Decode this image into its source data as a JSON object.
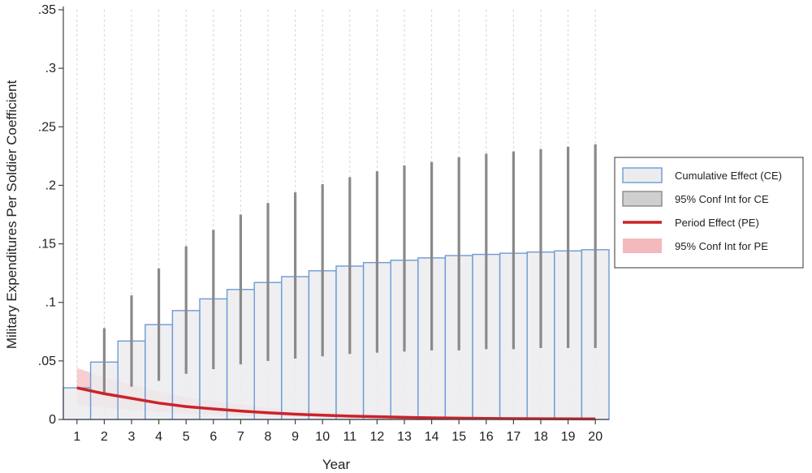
{
  "chart_data": {
    "type": "bar",
    "title": "",
    "xlabel": "Year",
    "ylabel": "Military Expenditures Per Soldier Coefficient",
    "ylim": [
      0,
      0.35
    ],
    "ytick_values": [
      0,
      0.05,
      0.1,
      0.15,
      0.2,
      0.25,
      0.3,
      0.35
    ],
    "ytick_labels": [
      "0",
      ".05",
      ".1",
      ".15",
      ".2",
      ".25",
      ".3",
      ".35"
    ],
    "categories": [
      "1",
      "2",
      "3",
      "4",
      "5",
      "6",
      "7",
      "8",
      "9",
      "10",
      "11",
      "12",
      "13",
      "14",
      "15",
      "16",
      "17",
      "18",
      "19",
      "20"
    ],
    "grid": "vertical dashed",
    "legend_position": "right",
    "series": [
      {
        "name": "Cumulative Effect (CE)",
        "kind": "bar",
        "values": [
          0.027,
          0.049,
          0.067,
          0.081,
          0.093,
          0.103,
          0.111,
          0.117,
          0.122,
          0.127,
          0.131,
          0.134,
          0.136,
          0.138,
          0.14,
          0.141,
          0.142,
          0.143,
          0.144,
          0.145
        ]
      },
      {
        "name": "95% Conf Int for CE",
        "kind": "errorbar",
        "lower": [
          null,
          0.021,
          0.028,
          0.033,
          0.039,
          0.043,
          0.047,
          0.05,
          0.052,
          0.054,
          0.056,
          0.057,
          0.058,
          0.059,
          0.059,
          0.06,
          0.06,
          0.061,
          0.061,
          0.061
        ],
        "upper": [
          null,
          0.078,
          0.106,
          0.129,
          0.148,
          0.162,
          0.175,
          0.185,
          0.194,
          0.201,
          0.207,
          0.212,
          0.217,
          0.22,
          0.224,
          0.227,
          0.229,
          0.231,
          0.233,
          0.235
        ]
      },
      {
        "name": "Period Effect (PE)",
        "kind": "line",
        "values": [
          0.027,
          0.022,
          0.018,
          0.014,
          0.011,
          0.009,
          0.0072,
          0.0057,
          0.0045,
          0.0036,
          0.0029,
          0.0023,
          0.0018,
          0.0014,
          0.0011,
          0.0009,
          0.0007,
          0.0006,
          0.0005,
          0.0004
        ]
      },
      {
        "name": "95% Conf Int for PE",
        "kind": "band",
        "lower": [
          0.012,
          0.01,
          0.008,
          0.0065,
          0.005,
          0.004,
          0.003,
          0.0025,
          0.002,
          0.0016,
          0.0012,
          0.001,
          0.0008,
          0.0006,
          0.0005,
          0.0004,
          0.0003,
          0.0002,
          0.0002,
          0.0001
        ],
        "upper": [
          0.044,
          0.036,
          0.03,
          0.024,
          0.019,
          0.016,
          0.013,
          0.01,
          0.0082,
          0.0066,
          0.0053,
          0.0042,
          0.0034,
          0.0027,
          0.0021,
          0.0017,
          0.0013,
          0.0011,
          0.0009,
          0.0007
        ]
      }
    ],
    "colors": {
      "bar_fill": "#ececee",
      "bar_stroke": "#6d9ad6",
      "ci_ce": "#8a8a8a",
      "pe_line": "#cc2229",
      "pe_band": "#f4b9bd",
      "grid": "#d6d6d6",
      "axis": "#444444"
    }
  }
}
